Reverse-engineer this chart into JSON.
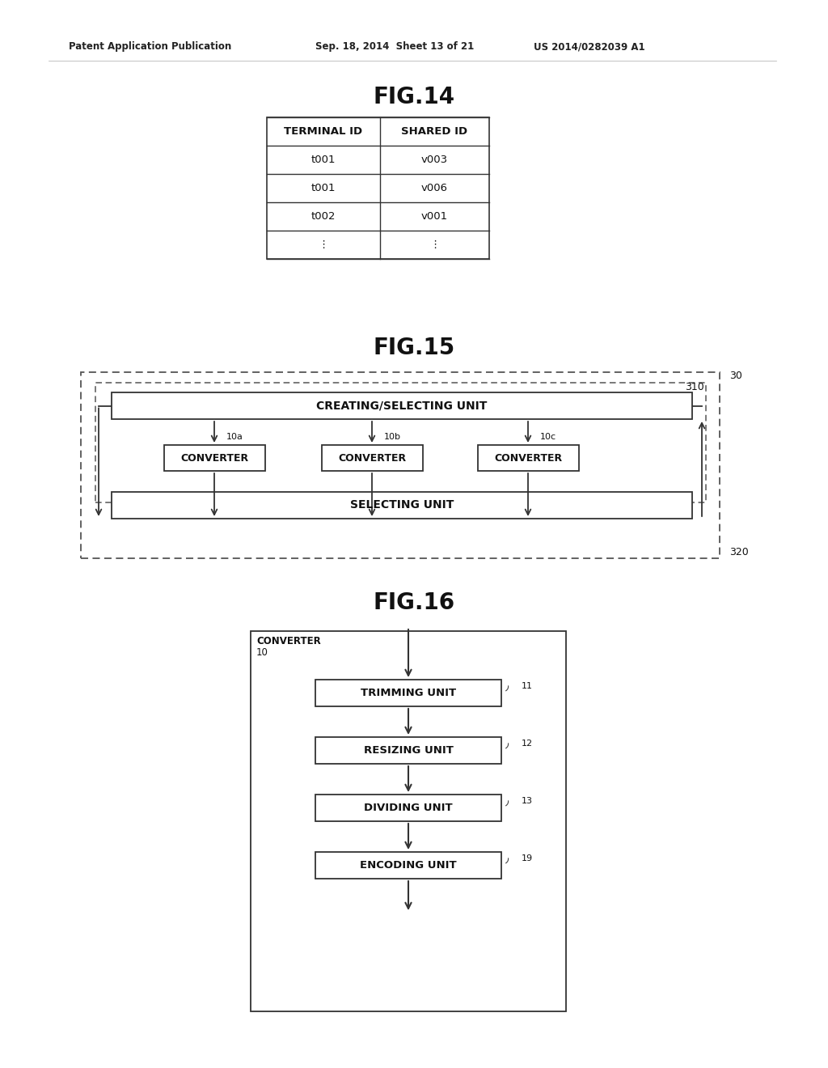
{
  "bg_color": "#ffffff",
  "header_text_left": "Patent Application Publication",
  "header_text_mid": "Sep. 18, 2014  Sheet 13 of 21",
  "header_text_right": "US 2014/0282039 A1",
  "fig14_title": "FIG.14",
  "fig15_title": "FIG.15",
  "fig16_title": "FIG.16",
  "table_headers": [
    "TERMINAL ID",
    "SHARED ID"
  ],
  "table_rows": [
    [
      "t001",
      "v003"
    ],
    [
      "t001",
      "v006"
    ],
    [
      "t002",
      "v001"
    ],
    [
      "⋮",
      "⋮"
    ]
  ],
  "label_30": "30",
  "label_310": "310",
  "label_320": "320",
  "label_10a": "10a",
  "label_10b": "10b",
  "label_10c": "10c",
  "creating_selecting_text": "CREATING/SELECTING UNIT",
  "selecting_text": "SELECTING UNIT",
  "converter_text": "CONVERTER",
  "fig16_outer_label": "CONVERTER",
  "fig16_outer_num": "10",
  "fig16_boxes": [
    {
      "text": "TRIMMING UNIT",
      "num": "11"
    },
    {
      "text": "RESIZING UNIT",
      "num": "12"
    },
    {
      "text": "DIVIDING UNIT",
      "num": "13"
    },
    {
      "text": "ENCODING UNIT",
      "num": "19"
    }
  ]
}
